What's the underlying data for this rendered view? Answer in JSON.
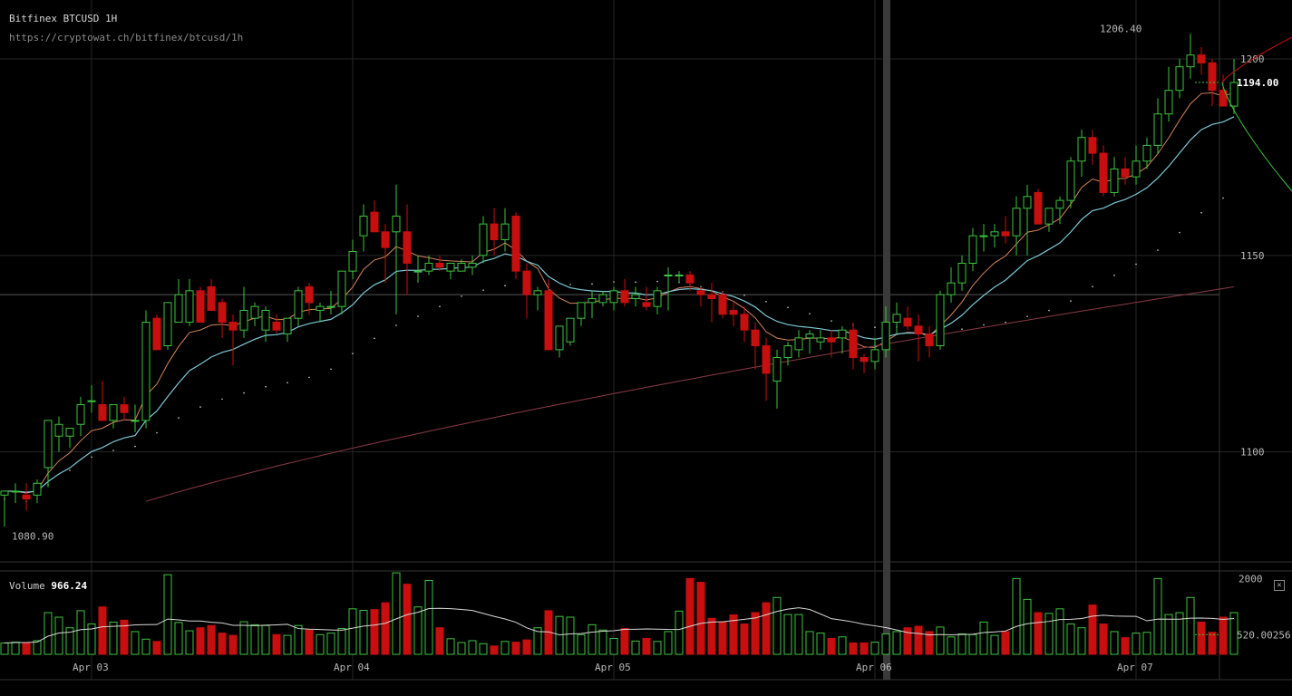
{
  "header": {
    "title": "Bitfinex BTCUSD 1H",
    "url": "https://cryptowat.ch/bitfinex/btcusd/1h"
  },
  "annotations": {
    "high_label": "1206.40",
    "low_label": "1080.90",
    "last_price": "1194.00"
  },
  "volume_panel": {
    "label": "Volume",
    "value": "966.24",
    "axis_ticks": [
      "2000",
      "520.00256"
    ]
  },
  "colors": {
    "up": "#3ec43e",
    "down": "#c80f0f",
    "ema_short": "#d4845a",
    "ema_mid": "#7ec8d6",
    "sma_long": "#8a3a44",
    "dotted_ma": "#d8d8d8",
    "grid": "#262626"
  },
  "chart_data": {
    "type": "candlestick",
    "title": "Bitfinex BTCUSD 1H",
    "ylim": [
      1072,
      1215
    ],
    "y_ticks": [
      1100,
      1150,
      1200
    ],
    "x_ticks": [
      "Apr 03",
      "Apr 04",
      "Apr 05",
      "Apr 06",
      "Apr 07"
    ],
    "x_tick_candle_index": [
      8,
      32,
      56,
      80,
      104
    ],
    "candles_ohlc": [
      [
        1089,
        1090,
        1081,
        1090
      ],
      [
        1090,
        1092,
        1087,
        1090
      ],
      [
        1089,
        1092,
        1085,
        1088
      ],
      [
        1089,
        1093,
        1087,
        1092
      ],
      [
        1096,
        1108,
        1091,
        1108
      ],
      [
        1104,
        1109,
        1100,
        1107
      ],
      [
        1104,
        1106,
        1101,
        1106
      ],
      [
        1107,
        1114,
        1104,
        1112
      ],
      [
        1113,
        1117,
        1110,
        1113
      ],
      [
        1112,
        1118,
        1108,
        1108
      ],
      [
        1108,
        1111,
        1106,
        1112
      ],
      [
        1112,
        1114,
        1108,
        1110
      ],
      [
        1108,
        1112,
        1105,
        1108
      ],
      [
        1108,
        1136,
        1106,
        1133
      ],
      [
        1134,
        1135,
        1126,
        1126
      ],
      [
        1127,
        1138,
        1126,
        1138
      ],
      [
        1133,
        1144,
        1133,
        1140
      ],
      [
        1133,
        1144,
        1132,
        1141
      ],
      [
        1141,
        1142,
        1134,
        1133
      ],
      [
        1142,
        1144,
        1136,
        1136
      ],
      [
        1138,
        1139,
        1129,
        1133
      ],
      [
        1133,
        1135,
        1122,
        1131
      ],
      [
        1131,
        1142,
        1129,
        1136
      ],
      [
        1134,
        1138,
        1132,
        1137
      ],
      [
        1131,
        1137,
        1128,
        1136
      ],
      [
        1133,
        1135,
        1130,
        1131
      ],
      [
        1130,
        1134,
        1128,
        1134
      ],
      [
        1134,
        1142,
        1132,
        1141
      ],
      [
        1142,
        1143,
        1135,
        1138
      ],
      [
        1136,
        1138,
        1133,
        1137
      ],
      [
        1137,
        1141,
        1135,
        1137
      ],
      [
        1137,
        1144,
        1135,
        1146
      ],
      [
        1146,
        1154,
        1144,
        1151
      ],
      [
        1155,
        1163,
        1151,
        1160
      ],
      [
        1161,
        1164,
        1158,
        1156
      ],
      [
        1156,
        1158,
        1143,
        1152
      ],
      [
        1156,
        1168,
        1135,
        1160
      ],
      [
        1156,
        1163,
        1140,
        1148
      ],
      [
        1146,
        1150,
        1143,
        1146
      ],
      [
        1146,
        1150,
        1145,
        1148
      ],
      [
        1148,
        1150,
        1146,
        1147
      ],
      [
        1146,
        1148,
        1144,
        1148
      ],
      [
        1146,
        1149,
        1146,
        1148
      ],
      [
        1147,
        1150,
        1145,
        1148
      ],
      [
        1150,
        1160,
        1148,
        1158
      ],
      [
        1158,
        1162,
        1150,
        1154
      ],
      [
        1154,
        1162,
        1151,
        1158
      ],
      [
        1160,
        1161,
        1144,
        1146
      ],
      [
        1146,
        1148,
        1134,
        1140
      ],
      [
        1140,
        1142,
        1136,
        1141
      ],
      [
        1141,
        1144,
        1127,
        1126
      ],
      [
        1126,
        1132,
        1124,
        1132
      ],
      [
        1128,
        1134,
        1127,
        1134
      ],
      [
        1134,
        1138,
        1132,
        1138
      ],
      [
        1138,
        1141,
        1134,
        1139
      ],
      [
        1138,
        1141,
        1137,
        1140
      ],
      [
        1138,
        1142,
        1136,
        1141
      ],
      [
        1141,
        1144,
        1137,
        1138
      ],
      [
        1139,
        1142,
        1137,
        1140
      ],
      [
        1138,
        1142,
        1136,
        1137
      ],
      [
        1137,
        1142,
        1135,
        1141
      ],
      [
        1145,
        1147,
        1136,
        1145
      ],
      [
        1145,
        1146,
        1143,
        1145
      ],
      [
        1145,
        1146,
        1141,
        1143
      ],
      [
        1141,
        1142,
        1137,
        1140
      ],
      [
        1140,
        1143,
        1133,
        1139
      ],
      [
        1140,
        1141,
        1134,
        1135
      ],
      [
        1136,
        1138,
        1132,
        1135
      ],
      [
        1135,
        1137,
        1128,
        1131
      ],
      [
        1131,
        1133,
        1121,
        1127
      ],
      [
        1127,
        1129,
        1113,
        1120
      ],
      [
        1118,
        1126,
        1111,
        1124
      ],
      [
        1124,
        1128,
        1122,
        1127
      ],
      [
        1126,
        1131,
        1124,
        1129
      ],
      [
        1129,
        1131,
        1125,
        1130
      ],
      [
        1128,
        1131,
        1126,
        1129
      ],
      [
        1129,
        1131,
        1124,
        1128
      ],
      [
        1129,
        1132,
        1125,
        1131
      ],
      [
        1131,
        1133,
        1121,
        1124
      ],
      [
        1124,
        1125,
        1120,
        1123
      ],
      [
        1123,
        1129,
        1121,
        1126
      ],
      [
        1126,
        1137,
        1124,
        1133
      ],
      [
        1133,
        1138,
        1130,
        1135
      ],
      [
        1134,
        1137,
        1131,
        1132
      ],
      [
        1132,
        1135,
        1123,
        1130
      ],
      [
        1130,
        1132,
        1124,
        1127
      ],
      [
        1127,
        1141,
        1126,
        1140
      ],
      [
        1140,
        1147,
        1138,
        1143
      ],
      [
        1143,
        1150,
        1141,
        1148
      ],
      [
        1148,
        1157,
        1146,
        1155
      ],
      [
        1155,
        1158,
        1151,
        1155
      ],
      [
        1155,
        1158,
        1152,
        1156
      ],
      [
        1156,
        1160,
        1153,
        1155
      ],
      [
        1155,
        1165,
        1150,
        1162
      ],
      [
        1162,
        1168,
        1150,
        1165
      ],
      [
        1166,
        1167,
        1158,
        1158
      ],
      [
        1158,
        1162,
        1156,
        1162
      ],
      [
        1162,
        1165,
        1158,
        1164
      ],
      [
        1164,
        1175,
        1162,
        1174
      ],
      [
        1174,
        1182,
        1170,
        1180
      ],
      [
        1180,
        1182,
        1173,
        1176
      ],
      [
        1176,
        1178,
        1165,
        1166
      ],
      [
        1166,
        1175,
        1165,
        1172
      ],
      [
        1172,
        1175,
        1168,
        1170
      ],
      [
        1170,
        1178,
        1168,
        1174
      ],
      [
        1174,
        1180,
        1172,
        1178
      ],
      [
        1178,
        1190,
        1176,
        1186
      ],
      [
        1186,
        1198,
        1184,
        1192
      ],
      [
        1192,
        1200,
        1190,
        1198
      ],
      [
        1198,
        1206.4,
        1195,
        1201
      ],
      [
        1201,
        1203,
        1196,
        1199
      ],
      [
        1199,
        1200,
        1188,
        1192
      ],
      [
        1192,
        1196,
        1188,
        1188
      ],
      [
        1188,
        1200,
        1186,
        1194
      ]
    ],
    "volumes": [
      300,
      320,
      310,
      360,
      1100,
      980,
      700,
      1150,
      800,
      1250,
      850,
      900,
      600,
      400,
      340,
      2100,
      840,
      620,
      700,
      760,
      560,
      500,
      860,
      780,
      760,
      520,
      500,
      760,
      640,
      520,
      560,
      680,
      1200,
      1160,
      1180,
      1360,
      2150,
      1850,
      1250,
      1950,
      700,
      410,
      310,
      360,
      280,
      220,
      340,
      320,
      380,
      700,
      1150,
      1000,
      980,
      520,
      780,
      640,
      420,
      680,
      350,
      420,
      340,
      600,
      1140,
      2000,
      1900,
      950,
      860,
      1040,
      800,
      1100,
      1360,
      1500,
      1050,
      1050,
      600,
      560,
      420,
      460,
      300,
      300,
      320,
      540,
      600,
      700,
      740,
      600,
      720,
      460,
      540,
      520,
      850,
      500,
      600,
      2000,
      1450,
      1100,
      1080,
      1200,
      800,
      700,
      1300,
      800,
      600,
      440,
      560,
      580,
      2000,
      1050,
      1100,
      1500,
      850,
      580,
      980,
      1100
    ]
  }
}
